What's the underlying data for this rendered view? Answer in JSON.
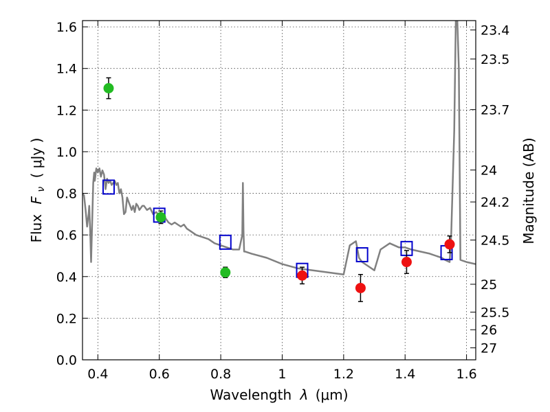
{
  "chart_data": {
    "type": "scatter",
    "xlabel": "Wavelength",
    "xlabel_symbol": "λ",
    "xlabel_unit": "(μm)",
    "ylabel": "Flux",
    "ylabel_symbol": "F",
    "ylabel_subscript": "ν",
    "ylabel_unit": "( μJy )",
    "y2label": "Magnitude (AB)",
    "xlim": [
      0.35,
      1.63
    ],
    "ylim": [
      0.0,
      1.63
    ],
    "grid": true,
    "x_ticks": [
      0.4,
      0.6,
      0.8,
      1.0,
      1.2,
      1.4,
      1.6
    ],
    "x_tick_labels": [
      "0.4",
      "0.6",
      "0.8",
      "1",
      "1.2",
      "1.4",
      "1.6"
    ],
    "y_ticks": [
      0.0,
      0.2,
      0.4,
      0.6,
      0.8,
      1.0,
      1.2,
      1.4,
      1.6
    ],
    "y_tick_labels": [
      "0.0",
      "0.2",
      "0.4",
      "0.6",
      "0.8",
      "1.0",
      "1.2",
      "1.4",
      "1.6"
    ],
    "y2_ticks": [
      "23.4",
      "23.5",
      "23.7",
      "24",
      "24.2",
      "24.5",
      "25",
      "25.5",
      "26",
      "27"
    ],
    "colors": {
      "model": "#808080",
      "green_points": "#22bb22",
      "red_points": "#ee1111",
      "model_squares": "#0000cc"
    },
    "series": [
      {
        "marker": "line",
        "color": "#808080",
        "x": [
          0.35,
          0.355,
          0.36,
          0.365,
          0.37,
          0.372,
          0.375,
          0.378,
          0.38,
          0.385,
          0.388,
          0.39,
          0.395,
          0.4,
          0.405,
          0.41,
          0.415,
          0.42,
          0.425,
          0.43,
          0.435,
          0.44,
          0.445,
          0.45,
          0.455,
          0.46,
          0.465,
          0.47,
          0.475,
          0.48,
          0.485,
          0.49,
          0.495,
          0.5,
          0.505,
          0.51,
          0.515,
          0.52,
          0.525,
          0.53,
          0.535,
          0.54,
          0.545,
          0.55,
          0.56,
          0.57,
          0.58,
          0.59,
          0.6,
          0.61,
          0.62,
          0.63,
          0.64,
          0.65,
          0.66,
          0.67,
          0.68,
          0.69,
          0.7,
          0.72,
          0.74,
          0.76,
          0.78,
          0.8,
          0.82,
          0.84,
          0.86,
          0.87,
          0.872,
          0.874,
          0.876,
          0.878,
          0.88,
          0.9,
          0.95,
          1.0,
          1.05,
          1.1,
          1.15,
          1.2,
          1.22,
          1.24,
          1.25,
          1.26,
          1.28,
          1.3,
          1.32,
          1.35,
          1.38,
          1.4,
          1.42,
          1.45,
          1.48,
          1.5,
          1.52,
          1.53,
          1.545,
          1.55,
          1.56,
          1.565,
          1.57,
          1.575,
          1.58,
          1.6,
          1.63
        ],
        "y": [
          0.8,
          0.79,
          0.72,
          0.64,
          0.7,
          0.74,
          0.62,
          0.47,
          0.58,
          0.85,
          0.9,
          0.86,
          0.92,
          0.9,
          0.92,
          0.88,
          0.91,
          0.89,
          0.82,
          0.87,
          0.85,
          0.86,
          0.84,
          0.85,
          0.86,
          0.84,
          0.85,
          0.8,
          0.82,
          0.78,
          0.7,
          0.71,
          0.78,
          0.76,
          0.74,
          0.72,
          0.74,
          0.71,
          0.75,
          0.74,
          0.72,
          0.73,
          0.74,
          0.74,
          0.72,
          0.73,
          0.7,
          0.71,
          0.69,
          0.69,
          0.68,
          0.66,
          0.65,
          0.66,
          0.65,
          0.64,
          0.65,
          0.63,
          0.62,
          0.6,
          0.59,
          0.58,
          0.56,
          0.55,
          0.54,
          0.53,
          0.53,
          0.6,
          0.85,
          0.62,
          0.52,
          0.52,
          0.52,
          0.51,
          0.49,
          0.46,
          0.44,
          0.43,
          0.42,
          0.41,
          0.55,
          0.57,
          0.49,
          0.47,
          0.45,
          0.43,
          0.53,
          0.56,
          0.54,
          0.54,
          0.53,
          0.52,
          0.51,
          0.5,
          0.49,
          0.48,
          0.47,
          0.6,
          1.1,
          1.63,
          1.63,
          1.4,
          0.48,
          0.47,
          0.46
        ]
      },
      {
        "marker": "circle",
        "color": "#22bb22",
        "x": [
          0.435,
          0.605,
          0.815
        ],
        "y": [
          1.305,
          0.685,
          0.42
        ],
        "yerr": [
          0.05,
          0.03,
          0.025
        ]
      },
      {
        "marker": "circle",
        "color": "#ee1111",
        "x": [
          1.065,
          1.255,
          1.405,
          1.545
        ],
        "y": [
          0.405,
          0.345,
          0.47,
          0.555
        ],
        "yerr": [
          0.04,
          0.065,
          0.055,
          0.04
        ]
      },
      {
        "marker": "open-square",
        "color": "#0000cc",
        "x": [
          0.435,
          0.6,
          0.815,
          1.065,
          1.26,
          1.405,
          1.535
        ],
        "y": [
          0.83,
          0.695,
          0.565,
          0.43,
          0.505,
          0.535,
          0.515
        ]
      }
    ]
  }
}
